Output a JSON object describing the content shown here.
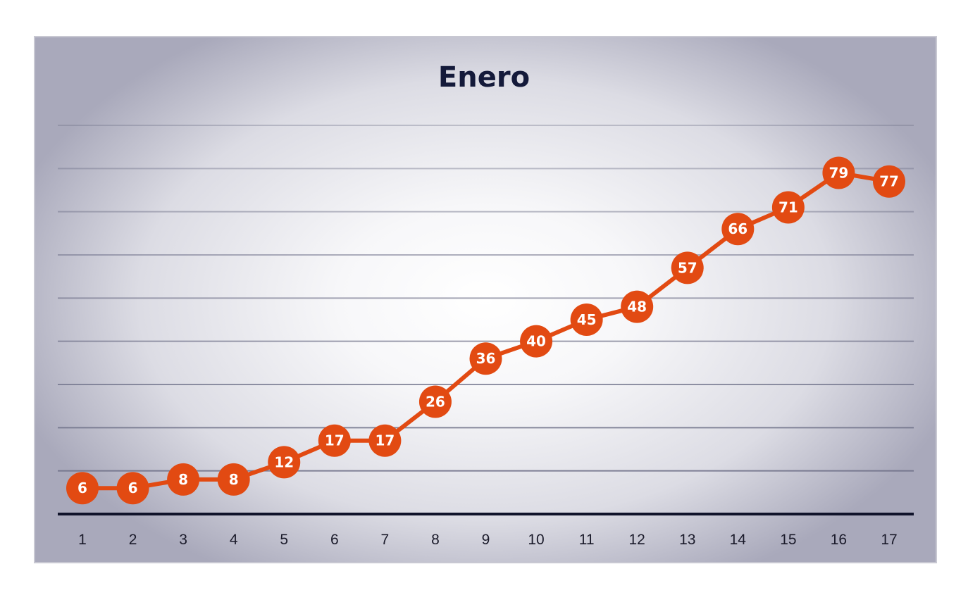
{
  "chart_data": {
    "type": "line",
    "title": "Enero",
    "xlabel": "",
    "ylabel": "",
    "x": [
      "1",
      "2",
      "3",
      "4",
      "5",
      "6",
      "7",
      "8",
      "9",
      "10",
      "11",
      "12",
      "13",
      "14",
      "15",
      "16",
      "17"
    ],
    "series": [
      {
        "values": [
          6,
          6,
          8,
          8,
          12,
          17,
          17,
          26,
          36,
          40,
          45,
          48,
          57,
          66,
          71,
          79,
          77
        ]
      }
    ],
    "ylim": [
      0,
      90
    ],
    "ytick_step": 10,
    "show_y_tick_labels": false,
    "grid": true,
    "legend": "none",
    "data_labels": true,
    "colors": {
      "series": "#e24a12",
      "marker_text": "#ffffff",
      "title": "#141a3a",
      "axis": "#10132a",
      "grid": "#6e7088"
    }
  }
}
